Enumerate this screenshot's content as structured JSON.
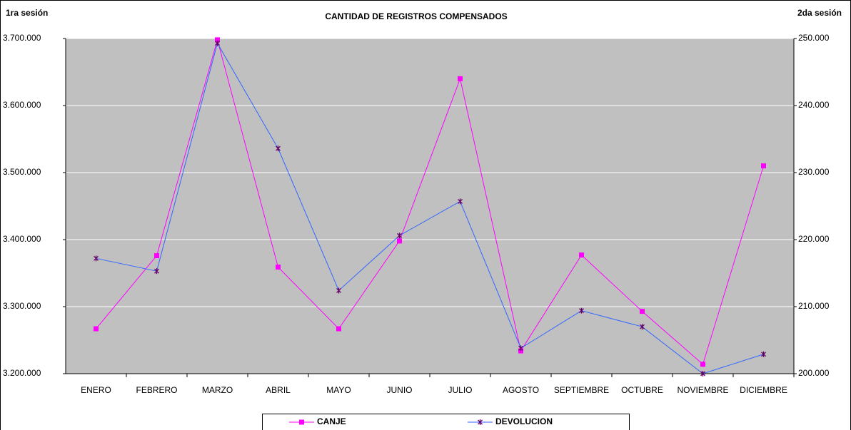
{
  "chart_data": {
    "type": "line",
    "title": "CANTIDAD DE REGISTROS COMPENSADOS",
    "y_label": "1ra sesión",
    "y2_label": "2da sesión",
    "categories": [
      "ENERO",
      "FEBRERO",
      "MARZO",
      "ABRIL",
      "MAYO",
      "JUNIO",
      "JULIO",
      "AGOSTO",
      "SEPTIEMBRE",
      "OCTUBRE",
      "NOVIEMBRE",
      "DICIEMBRE"
    ],
    "series": [
      {
        "name": "CANJE",
        "color": "#ff00ff",
        "values": [
          3267000,
          3376000,
          3698000,
          3359000,
          3267000,
          3398000,
          3640000,
          3234000,
          3377000,
          3293000,
          3214000,
          3510000
        ]
      },
      {
        "name": "DEVOLUCION",
        "color": "#3366ff",
        "marker_color": "#660066",
        "axis": "y2",
        "values": [
          217200,
          215300,
          249300,
          233600,
          212400,
          220600,
          225700,
          203800,
          209400,
          207000,
          200000,
          202900
        ]
      }
    ],
    "ylim": [
      3200000,
      3700000
    ],
    "yticks": [
      {
        "value": 3200000,
        "label": "3.200.000"
      },
      {
        "value": 3300000,
        "label": "3.300.000"
      },
      {
        "value": 3400000,
        "label": "3.400.000"
      },
      {
        "value": 3500000,
        "label": "3.500.000"
      },
      {
        "value": 3600000,
        "label": "3.600.000"
      },
      {
        "value": 3700000,
        "label": "3.700.000"
      }
    ],
    "y2lim": [
      200000,
      250000
    ],
    "y2ticks": [
      {
        "value": 200000,
        "label": "200.000"
      },
      {
        "value": 210000,
        "label": "210.000"
      },
      {
        "value": 220000,
        "label": "220.000"
      },
      {
        "value": 230000,
        "label": "230.000"
      },
      {
        "value": 240000,
        "label": "240.000"
      },
      {
        "value": 250000,
        "label": "250.000"
      }
    ],
    "grid": true,
    "plot_background": "#c0c0c0",
    "legend": "bottom"
  }
}
